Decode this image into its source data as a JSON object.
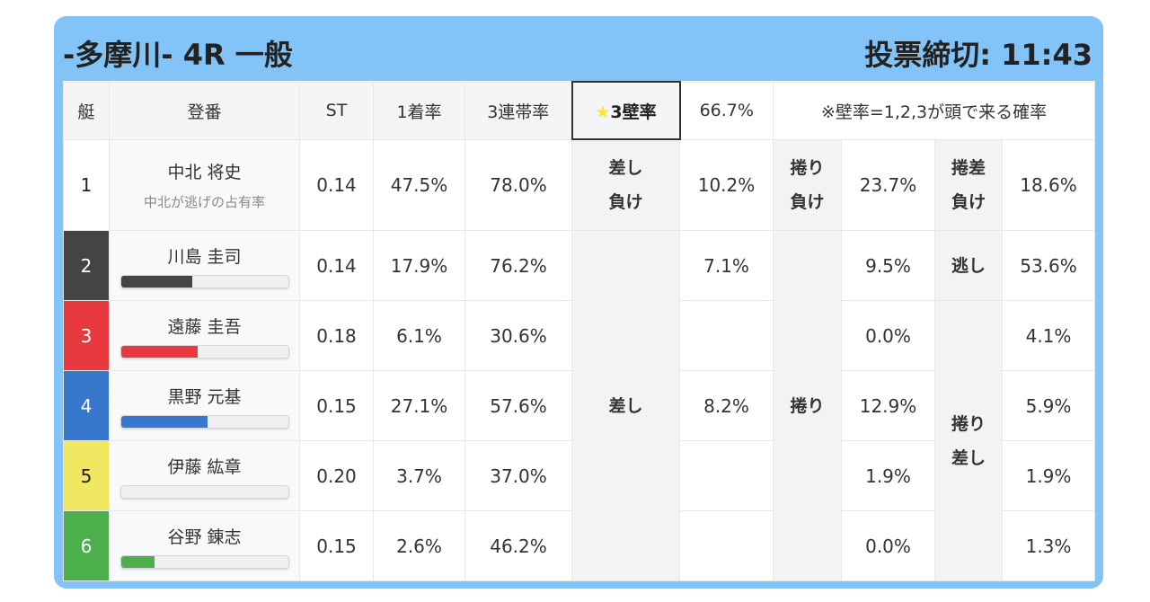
{
  "header": {
    "title": "-多摩川- 4R 一般",
    "deadline": "投票締切: 11:43"
  },
  "columns": {
    "boat": "艇",
    "name": "登番",
    "st": "ST",
    "win": "1着率",
    "top3": "3連帯率",
    "wall": "3壁率",
    "wall_value": "66.7%",
    "note": "※壁率=1,2,3が頭で来る確率"
  },
  "labels": {
    "sashi_make": "差し負け",
    "makuri_make": "捲り負け",
    "makusashi_make": "捲差負け",
    "sashi": "差し",
    "makuri": "捲り",
    "nige": "逃し",
    "makurisashi": "捲り差し"
  },
  "rows": [
    {
      "boat": "1",
      "name": "中北 将史",
      "sub": "中北が逃げの占有率",
      "st": "0.14",
      "win": "47.5%",
      "top3": "78.0%",
      "sashi": "10.2%",
      "makuri": "23.7%",
      "last": "18.6%",
      "color": "#ffffff",
      "text": "#222222"
    },
    {
      "boat": "2",
      "name": "川島 圭司",
      "st": "0.14",
      "win": "17.9%",
      "top3": "76.2%",
      "sashi": "7.1%",
      "makuri": "9.5%",
      "last": "53.6%",
      "color": "#444444",
      "text": "#ffffff",
      "bar": 43
    },
    {
      "boat": "3",
      "name": "遠藤 圭吾",
      "st": "0.18",
      "win": "6.1%",
      "top3": "30.6%",
      "sashi": "",
      "makuri": "0.0%",
      "last": "4.1%",
      "color": "#e8393e",
      "text": "#ffffff",
      "bar": 46
    },
    {
      "boat": "4",
      "name": "黒野 元基",
      "st": "0.15",
      "win": "27.1%",
      "top3": "57.6%",
      "sashi": "8.2%",
      "makuri": "12.9%",
      "last": "5.9%",
      "color": "#3777cc",
      "text": "#ffffff",
      "bar": 52
    },
    {
      "boat": "5",
      "name": "伊藤 紘章",
      "st": "0.20",
      "win": "3.7%",
      "top3": "37.0%",
      "sashi": "",
      "makuri": "1.9%",
      "last": "1.9%",
      "color": "#efe860",
      "text": "#222222",
      "bar": 0
    },
    {
      "boat": "6",
      "name": "谷野 錬志",
      "st": "0.15",
      "win": "2.6%",
      "top3": "46.2%",
      "sashi": "",
      "makuri": "0.0%",
      "last": "1.3%",
      "color": "#4caf4c",
      "text": "#ffffff",
      "bar": 20
    }
  ]
}
